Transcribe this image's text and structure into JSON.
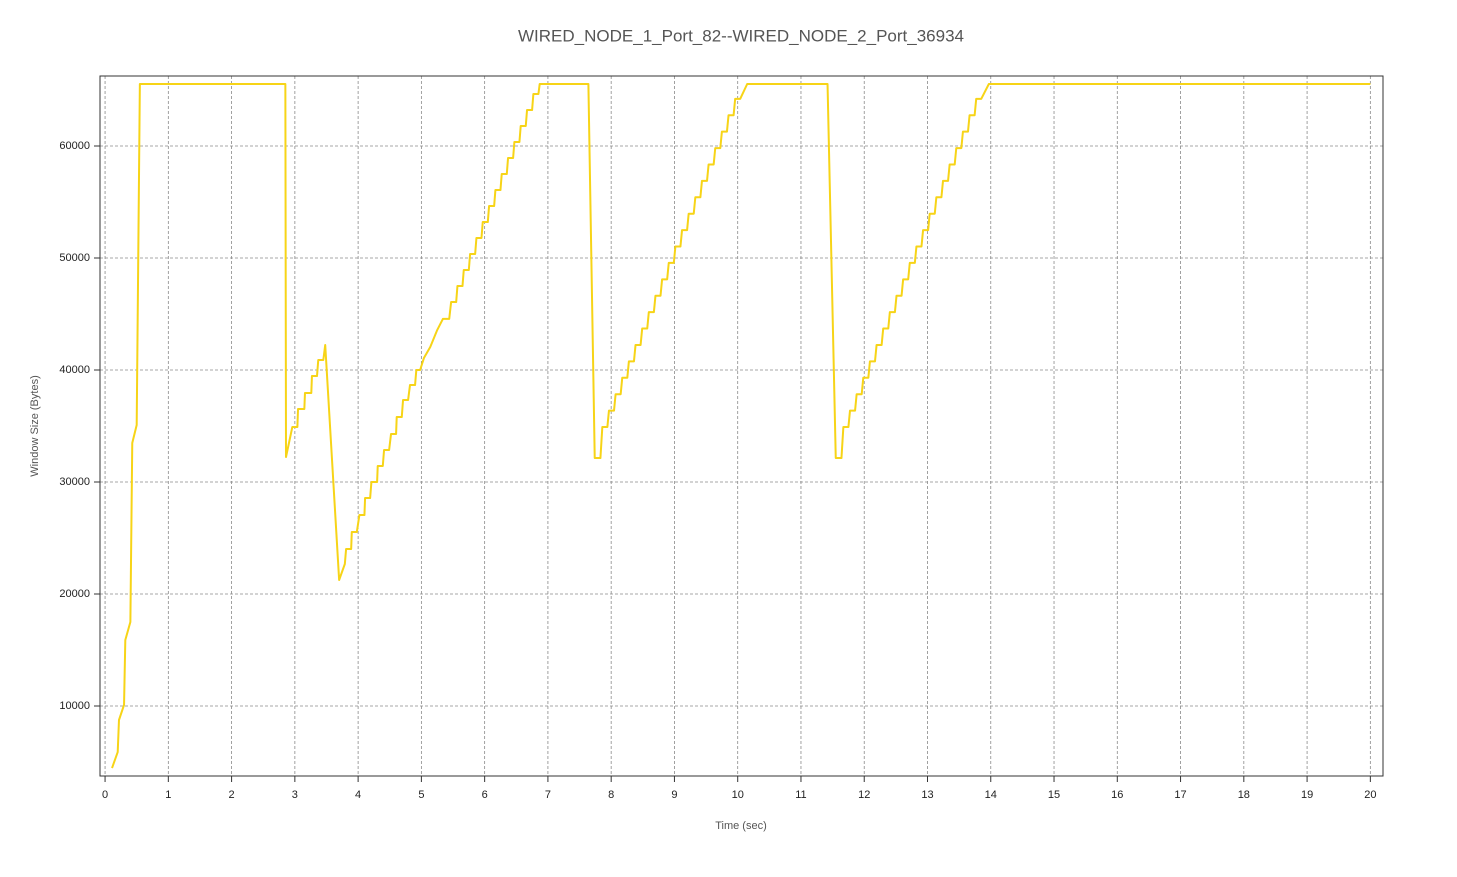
{
  "chart_data": {
    "type": "line",
    "title": "WIRED_NODE_1_Port_82--WIRED_NODE_2_Port_36934",
    "x_label": "Time (sec)",
    "y_label": "Window Size (Bytes)",
    "xlim": [
      -0.08,
      20.2
    ],
    "ylim": [
      3750,
      66250
    ],
    "xticks": [
      0,
      1,
      2,
      3,
      4,
      5,
      6,
      7,
      8,
      9,
      10,
      11,
      12,
      13,
      14,
      15,
      16,
      17,
      18,
      19,
      20
    ],
    "yticks": [
      10000,
      20000,
      30000,
      40000,
      50000,
      60000
    ],
    "grid": true,
    "x": [
      0.11,
      0.2,
      0.22,
      0.3,
      0.32,
      0.4,
      0.43,
      0.5,
      0.55,
      2.85,
      2.86,
      2.96,
      3.04,
      3.05,
      3.15,
      3.16,
      3.26,
      3.27,
      3.35,
      3.37,
      3.45,
      3.48,
      3.7,
      3.79,
      3.81,
      3.89,
      3.9,
      3.98,
      4.02,
      4.1,
      4.11,
      4.19,
      4.21,
      4.3,
      4.31,
      4.39,
      4.41,
      4.49,
      4.52,
      4.6,
      4.61,
      4.69,
      4.71,
      4.79,
      4.82,
      4.9,
      4.92,
      4.98,
      5.04,
      5.14,
      5.25,
      5.34,
      5.44,
      5.47,
      5.55,
      5.57,
      5.65,
      5.67,
      5.75,
      5.77,
      5.85,
      5.87,
      5.95,
      5.97,
      6.05,
      6.07,
      6.15,
      6.17,
      6.25,
      6.27,
      6.35,
      6.37,
      6.45,
      6.47,
      6.55,
      6.57,
      6.65,
      6.67,
      6.75,
      6.77,
      6.85,
      6.87,
      7.64,
      7.74,
      7.83,
      7.86,
      7.94,
      7.965,
      8.045,
      8.07,
      8.15,
      8.175,
      8.255,
      8.28,
      8.36,
      8.385,
      8.465,
      8.49,
      8.57,
      8.595,
      8.675,
      8.7,
      8.78,
      8.805,
      8.885,
      8.91,
      8.99,
      9.015,
      9.095,
      9.12,
      9.2,
      9.225,
      9.305,
      9.33,
      9.41,
      9.435,
      9.515,
      9.54,
      9.62,
      9.645,
      9.725,
      9.75,
      9.83,
      9.855,
      9.935,
      9.96,
      10.04,
      10.15,
      11.42,
      11.55,
      11.64,
      11.67,
      11.75,
      11.775,
      11.855,
      11.88,
      11.96,
      11.985,
      12.065,
      12.09,
      12.17,
      12.195,
      12.275,
      12.3,
      12.38,
      12.405,
      12.485,
      12.51,
      12.59,
      12.615,
      12.695,
      12.72,
      12.8,
      12.825,
      12.905,
      12.93,
      13.01,
      13.035,
      13.115,
      13.14,
      13.22,
      13.245,
      13.325,
      13.35,
      13.43,
      13.455,
      13.535,
      13.56,
      13.64,
      13.665,
      13.745,
      13.77,
      13.85,
      13.97,
      20
    ],
    "series": [
      {
        "name": "Window Size",
        "color": "#f7d417",
        "values": [
          4460,
          5890,
          8750,
          10090,
          15890,
          17500,
          33480,
          35090,
          65535,
          65535,
          32230,
          34910,
          34910,
          36520,
          36520,
          37950,
          37950,
          39460,
          39460,
          40890,
          40890,
          42230,
          21250,
          22680,
          24020,
          24020,
          25540,
          25540,
          27050,
          27050,
          28570,
          28570,
          30000,
          30000,
          31430,
          31430,
          32860,
          32860,
          34290,
          34290,
          35800,
          35800,
          37320,
          37320,
          38660,
          38660,
          40000,
          40000,
          41070,
          42050,
          43570,
          44560,
          44560,
          46070,
          46070,
          47500,
          47500,
          48930,
          48930,
          50360,
          50360,
          51790,
          51790,
          53210,
          53210,
          54640,
          54640,
          56070,
          56070,
          57500,
          57500,
          58930,
          58930,
          60360,
          60360,
          61790,
          61790,
          63210,
          63210,
          64640,
          64640,
          65535,
          65535,
          32140,
          32140,
          34910,
          34910,
          36375,
          36375,
          37840,
          37840,
          39305,
          39305,
          40770,
          40770,
          42235,
          42235,
          43700,
          43700,
          45165,
          45165,
          46630,
          46630,
          48095,
          48095,
          49560,
          49560,
          51025,
          51025,
          52490,
          52490,
          53955,
          53955,
          55420,
          55420,
          56885,
          56885,
          58350,
          58350,
          59815,
          59815,
          61280,
          61280,
          62745,
          62745,
          64210,
          64210,
          65535,
          65535,
          32140,
          32140,
          34910,
          34910,
          36375,
          36375,
          37840,
          37840,
          39305,
          39305,
          40770,
          40770,
          42235,
          42235,
          43700,
          43700,
          45165,
          45165,
          46630,
          46630,
          48095,
          48095,
          49560,
          49560,
          51025,
          51025,
          52490,
          52490,
          53955,
          53955,
          55420,
          55420,
          56885,
          56885,
          58350,
          58350,
          59815,
          59815,
          61280,
          61280,
          62745,
          62745,
          64210,
          64210,
          65535,
          65535
        ]
      }
    ]
  }
}
